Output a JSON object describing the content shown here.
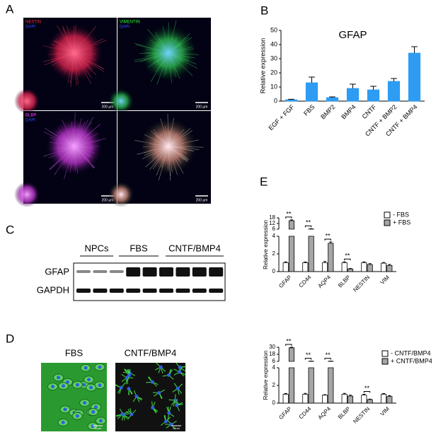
{
  "panels": {
    "a": "A",
    "b": "B",
    "c": "C",
    "d": "D",
    "e": "E"
  },
  "panel_a": {
    "tiles": [
      {
        "labels": [
          "NESTIN",
          "DAPI"
        ],
        "scale_bar": "200 µm"
      },
      {
        "labels": [
          "VIMENTIN",
          "DAPI"
        ],
        "scale_bar": "200 µm"
      },
      {
        "labels": [
          "BLBP",
          "DAPI"
        ],
        "scale_bar": "200 µm"
      },
      {
        "labels": [],
        "scale_bar": "200 µm"
      }
    ]
  },
  "blot": {
    "groups": [
      "NPCs",
      "FBS",
      "CNTF/BMP4"
    ],
    "rows": [
      "GFAP",
      "GAPDH"
    ]
  },
  "panel_d": {
    "images": [
      {
        "label": "FBS",
        "scale_bar": "20um"
      },
      {
        "label": "CNTF/BMP4",
        "scale_bar": "20um"
      }
    ]
  },
  "chart_data": [
    {
      "type": "bar",
      "title": "GFAP",
      "ylabel": "Relative expression",
      "categories": [
        "EGF + FGF",
        "FBS",
        "BMP2",
        "BMP4",
        "CNTF",
        "CNTF + BMP2",
        "CNTF + BMP4"
      ],
      "values": [
        1,
        13,
        2.5,
        9,
        8,
        14,
        34
      ],
      "errors": [
        0.3,
        4,
        0.5,
        3,
        2.5,
        2,
        4.5
      ],
      "color": "#2e9cf2",
      "ylim": [
        0,
        50
      ],
      "yticks": [
        0,
        10,
        20,
        30,
        40,
        50
      ]
    },
    {
      "type": "bar",
      "ylabel": "Relative expression",
      "categories": [
        "GFAP",
        "CD44",
        "AQP4",
        "BLBP",
        "NESTIN",
        "VIM"
      ],
      "series": [
        {
          "name": "- FBS",
          "color": "#ffffff",
          "values": [
            1,
            1,
            1,
            1,
            1,
            0.95
          ],
          "errors": [
            0.1,
            0.08,
            0.15,
            0.1,
            0.1,
            0.08
          ]
        },
        {
          "name": "+ FBS",
          "color": "#a6a6a6",
          "values": [
            15,
            6.2,
            3.2,
            0.3,
            0.8,
            0.7
          ],
          "errors": [
            0.8,
            0.3,
            0.15,
            0.05,
            0.1,
            0.1
          ]
        }
      ],
      "significance": [
        "**",
        "**",
        "**",
        "**",
        null,
        null
      ],
      "ylim": [
        0,
        18
      ],
      "y_break": [
        4,
        6
      ],
      "yticks": [
        0,
        2,
        4,
        6,
        12,
        18
      ],
      "legend": "upper right"
    },
    {
      "type": "bar",
      "ylabel": "Relative expression",
      "categories": [
        "GFAP",
        "CD44",
        "AQP4",
        "BLBP",
        "NESTIN",
        "VIM"
      ],
      "series": [
        {
          "name": "- CNTF/BMP4",
          "color": "#ffffff",
          "values": [
            1,
            1,
            0.9,
            1,
            0.9,
            1
          ],
          "errors": [
            0.08,
            0.1,
            0.05,
            0.1,
            0.1,
            0.08
          ]
        },
        {
          "name": "+ CNTF/BMP4",
          "color": "#a6a6a6",
          "values": [
            29,
            6.2,
            6.2,
            0.8,
            0.4,
            0.75
          ],
          "errors": [
            1,
            0.3,
            0.3,
            0.1,
            0.05,
            0.1
          ]
        }
      ],
      "significance": [
        "**",
        "**",
        "**",
        null,
        "**",
        null
      ],
      "ylim": [
        0,
        30
      ],
      "y_break": [
        4,
        6
      ],
      "yticks": [
        0,
        2,
        4,
        6,
        18,
        30
      ],
      "legend": "upper right"
    }
  ]
}
